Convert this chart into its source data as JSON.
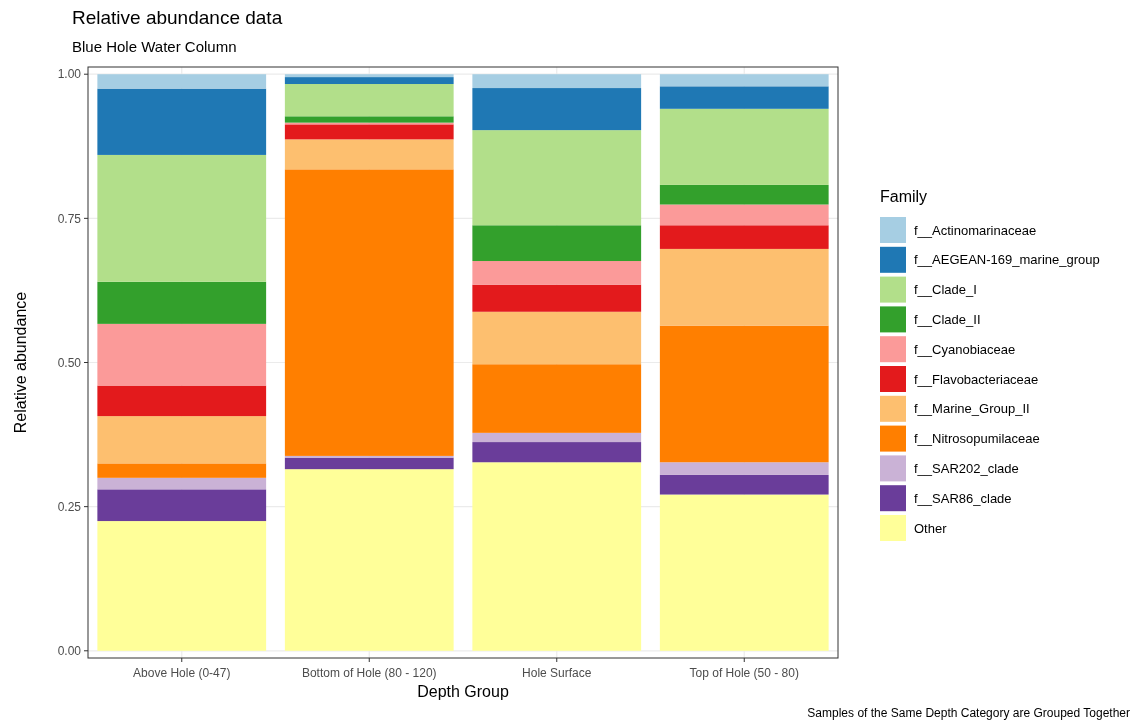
{
  "chart_data": {
    "type": "bar",
    "stacked": true,
    "title": "Relative abundance data",
    "subtitle": "Blue Hole Water Column",
    "xlabel": "Depth Group",
    "ylabel": "Relative abundance",
    "legend_title": "Family",
    "legend": "right",
    "grid": true,
    "categories": [
      "Above Hole (0-47)",
      "Bottom of Hole (80 - 120)",
      "Hole Surface",
      "Top of Hole (50 - 80)"
    ],
    "ylim": [
      -0.0125,
      1.0125
    ],
    "yticks": [
      {
        "value": 0,
        "label": "0.00"
      },
      {
        "value": 0.25,
        "label": "0.25"
      },
      {
        "value": 0.5,
        "label": "0.50"
      },
      {
        "value": 0.75,
        "label": "0.75"
      },
      {
        "value": 1,
        "label": "1.00"
      }
    ],
    "series": [
      {
        "name": "Other",
        "color": "#ffff99",
        "values": [
          0.225,
          0.315,
          0.327,
          0.271
        ]
      },
      {
        "name": "f__SAR86_clade",
        "color": "#6a3d9a",
        "values": [
          0.055,
          0.02,
          0.035,
          0.034
        ]
      },
      {
        "name": "f__SAR202_clade",
        "color": "#cab2d6",
        "values": [
          0.02,
          0.003,
          0.016,
          0.022
        ]
      },
      {
        "name": "f__Nitrosopumilaceae",
        "color": "#ff7f00",
        "values": [
          0.025,
          0.497,
          0.119,
          0.237
        ]
      },
      {
        "name": "f__Marine_Group_II",
        "color": "#fdbf6f",
        "values": [
          0.082,
          0.052,
          0.091,
          0.133
        ]
      },
      {
        "name": "f__Flavobacteriaceae",
        "color": "#e31a1c",
        "values": [
          0.053,
          0.026,
          0.047,
          0.041
        ]
      },
      {
        "name": "f__Cyanobiaceae",
        "color": "#fb9a99",
        "values": [
          0.107,
          0.003,
          0.041,
          0.036
        ]
      },
      {
        "name": "f__Clade_II",
        "color": "#33a02c",
        "values": [
          0.073,
          0.011,
          0.062,
          0.034
        ]
      },
      {
        "name": "f__Clade_I",
        "color": "#b2df8a",
        "values": [
          0.22,
          0.056,
          0.165,
          0.132
        ]
      },
      {
        "name": "f__AEGEAN-169_marine_group",
        "color": "#1f78b4",
        "values": [
          0.115,
          0.012,
          0.073,
          0.039
        ]
      },
      {
        "name": "f__Actinomarinaceae",
        "color": "#a6cee3",
        "values": [
          0.025,
          0.005,
          0.024,
          0.021
        ]
      }
    ],
    "annotations": [
      "Samples of the Same Depth Category are Grouped Together"
    ]
  }
}
